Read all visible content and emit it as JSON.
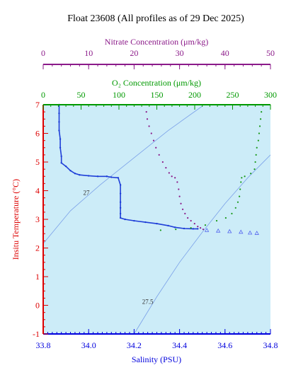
{
  "chart_data": {
    "type": "scatter",
    "title": "Float 23608  (All profiles as of 29 Dec 2025)",
    "axes": {
      "salinity": {
        "label": "Salinity (PSU)",
        "range": [
          33.8,
          34.8
        ],
        "ticks": [
          33.8,
          34.0,
          34.2,
          34.4,
          34.6,
          34.8
        ],
        "tick_labels": [
          "33.8",
          "34.0",
          "34.2",
          "34.4",
          "34.6",
          "34.8"
        ],
        "color": "#0000dd"
      },
      "temperature": {
        "label": "Insitu Temperature (°C)",
        "range": [
          -1,
          7
        ],
        "ticks": [
          -1,
          0,
          1,
          2,
          3,
          4,
          5,
          6,
          7
        ],
        "tick_labels": [
          "-1",
          "0",
          "1",
          "2",
          "3",
          "4",
          "5",
          "6",
          "7"
        ],
        "color": "#dd0000"
      },
      "oxygen": {
        "label": "O₂ Concentration (μm/kg)",
        "range": [
          0,
          300
        ],
        "ticks": [
          0,
          50,
          100,
          150,
          200,
          250,
          300
        ],
        "tick_labels": [
          "0",
          "50",
          "100",
          "150",
          "200",
          "250",
          "300"
        ],
        "color": "#009900"
      },
      "nitrate": {
        "label": "Nitrate Concentration (μm/kg)",
        "range": [
          0,
          50
        ],
        "ticks": [
          0,
          10,
          20,
          30,
          40,
          50
        ],
        "tick_labels": [
          "0",
          "10",
          "20",
          "30",
          "40",
          "50"
        ],
        "color": "#8b1a89"
      }
    },
    "density_contours": [
      {
        "label": "27",
        "points": [
          [
            33.8,
            2.15
          ],
          [
            33.92,
            3.3
          ],
          [
            34.05,
            4.2
          ],
          [
            34.2,
            5.15
          ],
          [
            34.35,
            6.1
          ],
          [
            34.5,
            6.95
          ]
        ]
      },
      {
        "label": "27.5",
        "points": [
          [
            34.2,
            -1.0
          ],
          [
            34.3,
            0.3
          ],
          [
            34.4,
            1.5
          ],
          [
            34.5,
            2.55
          ],
          [
            34.6,
            3.55
          ],
          [
            34.7,
            4.45
          ],
          [
            34.8,
            5.25
          ]
        ]
      }
    ],
    "series": [
      {
        "kind": "ts",
        "color": "#1f3fd8",
        "points": [
          [
            33.87,
            7.0
          ],
          [
            33.87,
            6.7
          ],
          [
            33.87,
            6.4
          ],
          [
            33.87,
            6.1
          ],
          [
            33.875,
            5.8
          ],
          [
            33.875,
            5.5
          ],
          [
            33.88,
            5.2
          ],
          [
            33.88,
            4.97
          ],
          [
            33.9,
            4.85
          ],
          [
            33.92,
            4.7
          ],
          [
            33.94,
            4.6
          ],
          [
            33.96,
            4.55
          ],
          [
            34.0,
            4.52
          ],
          [
            34.04,
            4.5
          ],
          [
            34.08,
            4.5
          ],
          [
            34.1,
            4.47
          ],
          [
            34.13,
            4.45
          ],
          [
            34.14,
            4.2
          ],
          [
            34.14,
            3.9
          ],
          [
            34.14,
            3.6
          ],
          [
            34.14,
            3.4
          ],
          [
            34.14,
            3.2
          ],
          [
            34.14,
            3.05
          ],
          [
            34.16,
            3.0
          ],
          [
            34.2,
            2.95
          ],
          [
            34.25,
            2.9
          ],
          [
            34.3,
            2.85
          ],
          [
            34.35,
            2.78
          ],
          [
            34.38,
            2.72
          ],
          [
            34.42,
            2.68
          ],
          [
            34.46,
            2.67
          ],
          [
            34.48,
            2.67
          ]
        ]
      },
      {
        "kind": "ts-deep",
        "color": "#5566ee",
        "points": [
          [
            34.52,
            2.62
          ],
          [
            34.57,
            2.6
          ],
          [
            34.62,
            2.58
          ],
          [
            34.67,
            2.56
          ],
          [
            34.71,
            2.53
          ],
          [
            34.74,
            2.52
          ]
        ]
      },
      {
        "kind": "nitrate",
        "color": "#8b1a89",
        "points": [
          [
            22.7,
            7.0
          ],
          [
            22.7,
            6.75
          ],
          [
            22.9,
            6.5
          ],
          [
            23.3,
            6.25
          ],
          [
            23.8,
            6.0
          ],
          [
            24.3,
            5.75
          ],
          [
            24.8,
            5.5
          ],
          [
            25.5,
            5.25
          ],
          [
            26.3,
            5.0
          ],
          [
            27.0,
            4.8
          ],
          [
            27.7,
            4.62
          ],
          [
            28.3,
            4.5
          ],
          [
            29.0,
            4.45
          ],
          [
            29.5,
            4.3
          ],
          [
            29.8,
            4.05
          ],
          [
            30.0,
            3.8
          ],
          [
            30.3,
            3.55
          ],
          [
            30.7,
            3.35
          ],
          [
            31.2,
            3.2
          ],
          [
            31.8,
            3.05
          ],
          [
            32.5,
            2.95
          ],
          [
            33.3,
            2.85
          ],
          [
            34.0,
            2.75
          ],
          [
            34.6,
            2.7
          ],
          [
            35.2,
            2.65
          ]
        ]
      },
      {
        "kind": "oxygen",
        "color": "#1a9a1a",
        "points": [
          [
            288,
            7.0
          ],
          [
            288,
            6.75
          ],
          [
            287,
            6.5
          ],
          [
            286,
            6.25
          ],
          [
            285,
            6.0
          ],
          [
            284,
            5.75
          ],
          [
            282,
            5.5
          ],
          [
            281,
            5.25
          ],
          [
            280,
            5.0
          ],
          [
            279,
            4.75
          ],
          [
            274,
            4.6
          ],
          [
            266,
            4.5
          ],
          [
            262,
            4.45
          ],
          [
            261,
            4.3
          ],
          [
            260,
            4.05
          ],
          [
            259,
            3.8
          ],
          [
            257,
            3.6
          ],
          [
            254,
            3.4
          ],
          [
            249,
            3.2
          ],
          [
            241,
            3.05
          ],
          [
            229,
            2.95
          ],
          [
            214,
            2.8
          ],
          [
            195,
            2.7
          ],
          [
            175,
            2.65
          ],
          [
            155,
            2.62
          ]
        ]
      }
    ]
  }
}
